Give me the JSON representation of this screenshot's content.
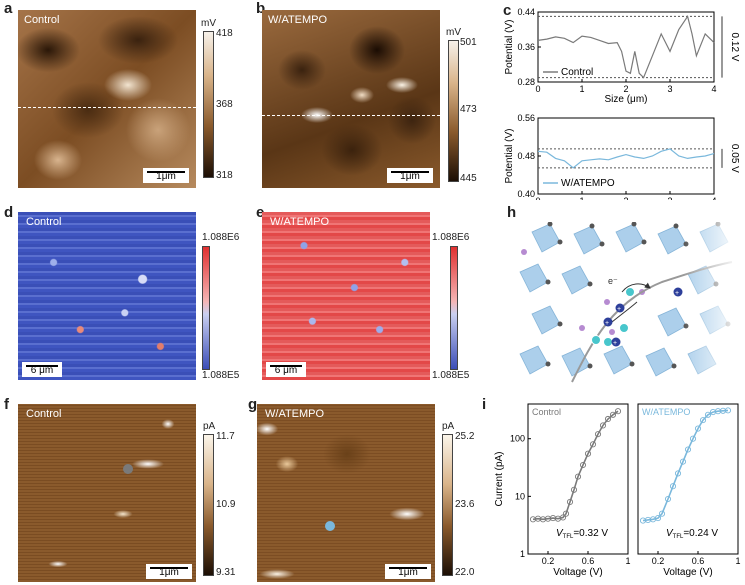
{
  "panels": {
    "a": {
      "letter": "a",
      "label": "Control",
      "unit": "mV",
      "cbar_ticks": [
        "418",
        "368",
        "318"
      ],
      "scale": "1μm"
    },
    "b": {
      "letter": "b",
      "label": "W/ATEMPO",
      "unit": "mV",
      "cbar_ticks": [
        "501",
        "473",
        "445"
      ],
      "scale": "1μm"
    },
    "c": {
      "letter": "c"
    },
    "d": {
      "letter": "d",
      "label": "Control",
      "cbar_ticks": [
        "1.088E6",
        "1.088E5"
      ],
      "scale": "6 μm"
    },
    "e": {
      "letter": "e",
      "label": "W/ATEMPO",
      "cbar_ticks": [
        "1.088E6",
        "1.088E5"
      ],
      "scale": "6 μm"
    },
    "f": {
      "letter": "f",
      "label": "Control",
      "unit": "pA",
      "cbar_ticks": [
        "11.7",
        "10.9",
        "9.31"
      ],
      "scale": "1μm"
    },
    "g": {
      "letter": "g",
      "label": "W/ATEMPO",
      "unit": "pA",
      "cbar_ticks": [
        "25.2",
        "23.6",
        "22.0"
      ],
      "scale": "1μm"
    },
    "h": {
      "letter": "h",
      "electron": "e⁻"
    },
    "i": {
      "letter": "i"
    }
  },
  "colors": {
    "afm": "#8a5a2c",
    "kpfm_blue": "#3e55b8",
    "kpfm_red": "#e24a4a",
    "curve_control": "#7a7a7a",
    "curve_tempo": "#7ab8dc"
  },
  "chart_data": [
    {
      "type": "line",
      "panel": "c-top",
      "ylabel": "Potential (V)",
      "xlabel": "Size (μm)",
      "xlim": [
        0,
        4
      ],
      "ylim": [
        0.28,
        0.44
      ],
      "xticks": [
        "0",
        "1",
        "2",
        "3",
        "4"
      ],
      "yticks": [
        "0.28",
        "0.36",
        "0.44"
      ],
      "legend": "Control",
      "annotation": "0.12 V",
      "series": [
        {
          "name": "Control",
          "x": [
            0,
            0.2,
            0.4,
            0.6,
            0.8,
            1.0,
            1.2,
            1.4,
            1.6,
            1.8,
            1.9,
            2.0,
            2.1,
            2.2,
            2.3,
            2.4,
            2.6,
            2.8,
            3.0,
            3.2,
            3.4,
            3.5,
            3.6,
            3.8,
            4.0
          ],
          "y": [
            0.375,
            0.378,
            0.383,
            0.38,
            0.37,
            0.385,
            0.382,
            0.375,
            0.368,
            0.37,
            0.35,
            0.305,
            0.3,
            0.35,
            0.3,
            0.29,
            0.34,
            0.39,
            0.35,
            0.4,
            0.43,
            0.39,
            0.34,
            0.39,
            0.37
          ]
        }
      ]
    },
    {
      "type": "line",
      "panel": "c-bottom",
      "ylabel": "Potential (V)",
      "xlabel": "Size (μm)",
      "xlim": [
        0,
        4
      ],
      "ylim": [
        0.4,
        0.56
      ],
      "xticks": [
        "0",
        "1",
        "2",
        "3",
        "4"
      ],
      "yticks": [
        "0.40",
        "0.48",
        "0.56"
      ],
      "legend": "W/ATEMPO",
      "annotation": "0.05 V",
      "series": [
        {
          "name": "W/ATEMPO",
          "x": [
            0,
            0.2,
            0.4,
            0.6,
            0.8,
            1.0,
            1.2,
            1.4,
            1.6,
            1.8,
            2.0,
            2.2,
            2.4,
            2.6,
            2.8,
            3.0,
            3.2,
            3.4,
            3.6,
            3.8,
            4.0
          ],
          "y": [
            0.49,
            0.488,
            0.475,
            0.47,
            0.455,
            0.47,
            0.472,
            0.474,
            0.472,
            0.478,
            0.483,
            0.478,
            0.475,
            0.48,
            0.49,
            0.495,
            0.48,
            0.475,
            0.478,
            0.48,
            0.485
          ]
        }
      ]
    },
    {
      "type": "scatter",
      "panel": "i-left",
      "label": "Control",
      "ylabel": "Current (pA)",
      "xlabel": "Voltage (V)",
      "yscale": "log",
      "yticks": [
        "1",
        "10",
        "100"
      ],
      "xticks": [
        "0.2",
        "0.6",
        "1"
      ],
      "annotation_main": "V",
      "annotation_sub": "TFL",
      "annotation_value": "=0.32 V",
      "series": [
        {
          "name": "Control",
          "x": [
            0.05,
            0.1,
            0.15,
            0.2,
            0.25,
            0.3,
            0.35,
            0.38,
            0.42,
            0.46,
            0.5,
            0.55,
            0.6,
            0.65,
            0.7,
            0.75,
            0.8,
            0.85,
            0.9
          ],
          "y": [
            4,
            4.1,
            4,
            4.1,
            4.2,
            4.1,
            4.3,
            5,
            8,
            13,
            22,
            35,
            55,
            80,
            120,
            170,
            220,
            260,
            300
          ]
        }
      ]
    },
    {
      "type": "scatter",
      "panel": "i-right",
      "label": "W/ATEMPO",
      "xlabel": "Voltage (V)",
      "yscale": "log",
      "xticks": [
        "0.2",
        "0.6",
        "1"
      ],
      "annotation_main": "V",
      "annotation_sub": "TFL",
      "annotation_value": "=0.24 V",
      "series": [
        {
          "name": "W/ATEMPO",
          "x": [
            0.05,
            0.1,
            0.15,
            0.2,
            0.24,
            0.3,
            0.35,
            0.4,
            0.45,
            0.5,
            0.55,
            0.6,
            0.65,
            0.7,
            0.75,
            0.8,
            0.85,
            0.9
          ],
          "y": [
            3.8,
            3.9,
            4.0,
            4.2,
            5,
            9,
            15,
            25,
            40,
            65,
            100,
            150,
            210,
            260,
            290,
            300,
            305,
            310
          ]
        }
      ]
    }
  ]
}
